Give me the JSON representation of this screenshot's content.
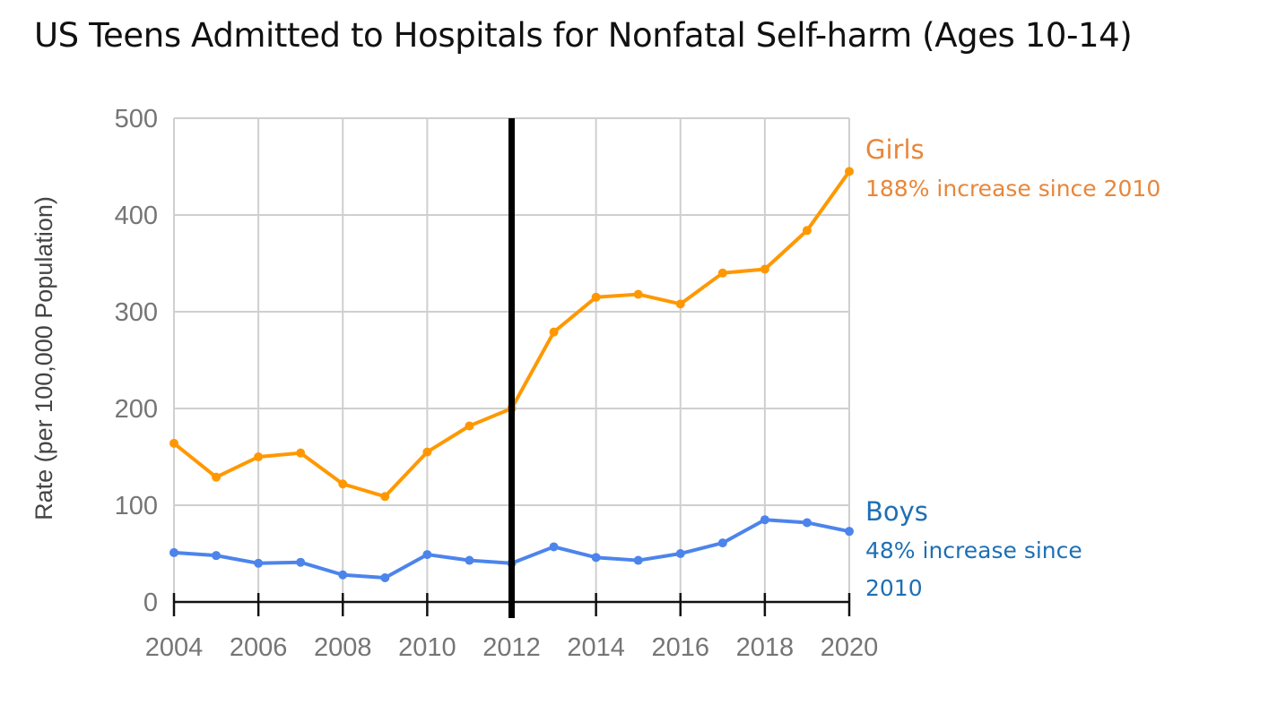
{
  "chart_data": {
    "type": "line",
    "title": "US Teens Admitted to Hospitals for Nonfatal Self-harm (Ages 10-14)",
    "ylabel": "Rate (per 100,000 Population)",
    "xlabel": "",
    "x": [
      2004,
      2005,
      2006,
      2007,
      2008,
      2009,
      2010,
      2011,
      2012,
      2013,
      2014,
      2015,
      2016,
      2017,
      2018,
      2019,
      2020
    ],
    "xticks": [
      "2004",
      "2006",
      "2008",
      "2010",
      "2012",
      "2014",
      "2016",
      "2018",
      "2020"
    ],
    "yticks": [
      "0",
      "100",
      "200",
      "300",
      "400",
      "500"
    ],
    "xlim": [
      2004,
      2020
    ],
    "ylim": [
      0,
      500
    ],
    "grid": true,
    "marker_line_x": 2012,
    "series": [
      {
        "name": "Girls",
        "note": "188% increase since 2010",
        "color": "#FF9800",
        "label_color": "#E8863A",
        "values": [
          164,
          129,
          150,
          154,
          122,
          109,
          155,
          182,
          200,
          279,
          315,
          318,
          308,
          340,
          344,
          384,
          445
        ]
      },
      {
        "name": "Boys",
        "note_lines": [
          "48% increase since",
          "2010"
        ],
        "color": "#4C84EC",
        "label_color": "#1E6FB5",
        "values": [
          51,
          48,
          40,
          41,
          28,
          25,
          49,
          43,
          40,
          57,
          46,
          43,
          50,
          61,
          85,
          82,
          73
        ]
      }
    ]
  }
}
